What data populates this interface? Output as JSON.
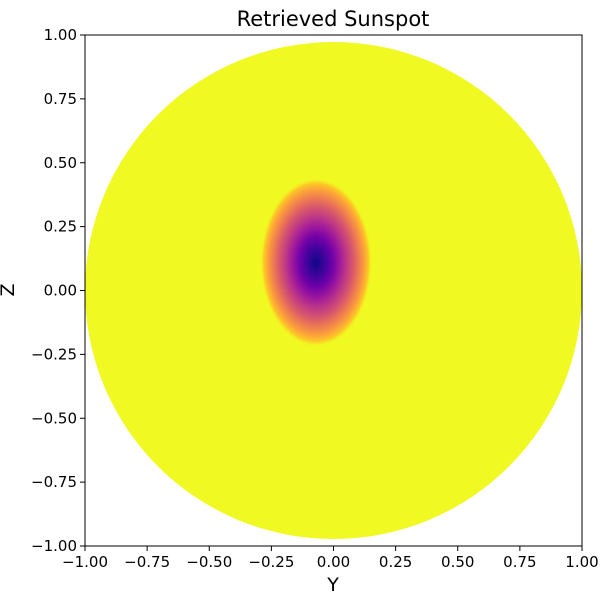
{
  "chart_data": {
    "type": "heatmap",
    "title": "Retrieved Sunspot",
    "xlabel": "Y",
    "ylabel": "Z",
    "xlim": [
      -1.0,
      1.0
    ],
    "ylim": [
      -1.0,
      1.0
    ],
    "xticks": [
      -1.0,
      -0.75,
      -0.5,
      -0.25,
      0.0,
      0.25,
      0.5,
      0.75,
      1.0
    ],
    "yticks": [
      -1.0,
      -0.75,
      -0.5,
      -0.25,
      0.0,
      0.25,
      0.5,
      0.75,
      1.0
    ],
    "xtick_labels": [
      "−1.00",
      "−0.75",
      "−0.50",
      "−0.25",
      "0.00",
      "0.25",
      "0.50",
      "0.75",
      "1.00"
    ],
    "ytick_labels": [
      "−1.00",
      "−0.75",
      "−0.50",
      "−0.25",
      "0.00",
      "0.25",
      "0.50",
      "0.75",
      "1.00"
    ],
    "grid": false,
    "colormap": "plasma",
    "disk": {
      "center": [
        0.0,
        0.0
      ],
      "radius": 1.0,
      "background_color": "#f0f921"
    },
    "spot": {
      "center": [
        -0.07,
        0.11
      ],
      "sigma_y": 0.075,
      "sigma_z": 0.11,
      "core_color": "#0d0887"
    }
  }
}
